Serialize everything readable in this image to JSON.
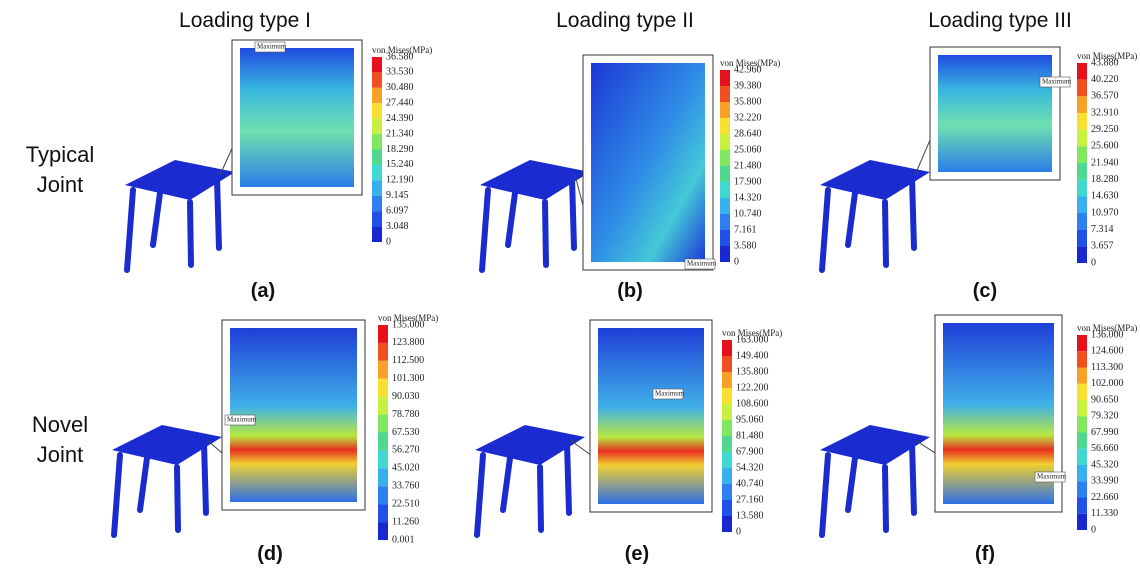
{
  "columns": [
    "Loading type I",
    "Loading type II",
    "Loading type III"
  ],
  "rows": [
    "Typical Joint",
    "Novel Joint"
  ],
  "panels": [
    {
      "label": "(a)",
      "legend_title": "von Mises(MPa)",
      "marker": "Maximum",
      "legend_values": [
        "36.580",
        "33.530",
        "30.480",
        "27.440",
        "24.390",
        "21.340",
        "18.290",
        "15.240",
        "12.190",
        "9.145",
        "6.097",
        "3.048",
        "0"
      ]
    },
    {
      "label": "(b)",
      "legend_title": "von Mises(MPa)",
      "marker": "Maximum",
      "legend_values": [
        "42.960",
        "39.380",
        "35.800",
        "32.220",
        "28.640",
        "25.060",
        "21.480",
        "17.900",
        "14.320",
        "10.740",
        "7.161",
        "3.580",
        "0"
      ]
    },
    {
      "label": "(c)",
      "legend_title": "von Mises(MPa)",
      "marker": "Maximum",
      "legend_values": [
        "43.880",
        "40.220",
        "36.570",
        "32.910",
        "29.250",
        "25.600",
        "21.940",
        "18.280",
        "14.630",
        "10.970",
        "7.314",
        "3.657",
        "0"
      ]
    },
    {
      "label": "(d)",
      "legend_title": "von Mises(MPa)",
      "marker": "Maximum",
      "legend_values": [
        "135.000",
        "123.800",
        "112.500",
        "101.300",
        "90.030",
        "78.780",
        "67.530",
        "56.270",
        "45.020",
        "33.760",
        "22.510",
        "11.260",
        "0.001"
      ]
    },
    {
      "label": "(e)",
      "legend_title": "von Mises(MPa)",
      "marker": "Maximum",
      "legend_values": [
        "163.000",
        "149.400",
        "135.800",
        "122.200",
        "108.600",
        "95.060",
        "81.480",
        "67.900",
        "54.320",
        "40.740",
        "27.160",
        "13.580",
        "0"
      ]
    },
    {
      "label": "(f)",
      "legend_title": "von Mises(MPa)",
      "marker": "Maximum",
      "legend_values": [
        "136.000",
        "124.600",
        "113.300",
        "102.000",
        "90.650",
        "79.320",
        "67.990",
        "56.660",
        "45.320",
        "33.990",
        "22.660",
        "11.330",
        "0"
      ]
    }
  ]
}
